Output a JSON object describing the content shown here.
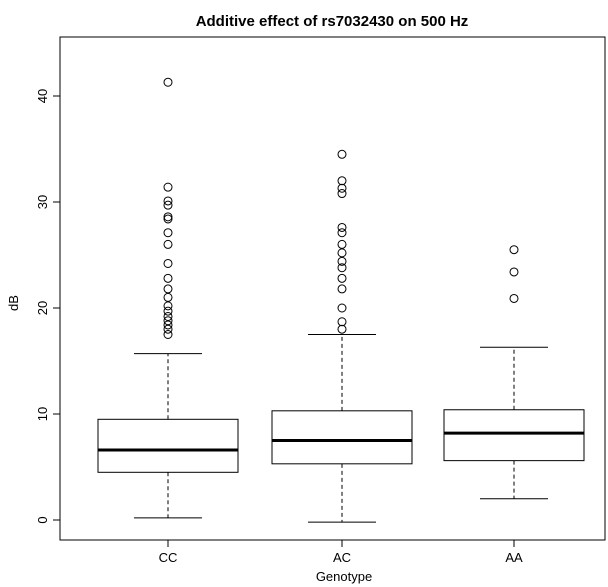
{
  "chart_data": {
    "type": "boxplot",
    "title": "Additive effect of rs7032430 on 500 Hz",
    "xlabel": "Genotype",
    "ylabel": "dB",
    "ylim": [
      -2,
      46
    ],
    "yticks": [
      0,
      10,
      20,
      30,
      40
    ],
    "yticks_labels": [
      "0",
      "10",
      "20",
      "30",
      "40"
    ],
    "grid": false,
    "categories": [
      "CC",
      "AC",
      "AA"
    ],
    "boxes": [
      {
        "category": "CC",
        "whisker_low": 0.2,
        "q1": 4.5,
        "median": 6.6,
        "q3": 9.5,
        "whisker_high": 15.7,
        "outliers": [
          17.5,
          18.0,
          18.4,
          18.8,
          19.2,
          19.7,
          20.2,
          21.0,
          21.8,
          22.8,
          24.2,
          26.0,
          27.1,
          28.4,
          28.6,
          29.7,
          30.1,
          31.4,
          41.3
        ]
      },
      {
        "category": "AC",
        "whisker_low": -0.2,
        "q1": 5.3,
        "median": 7.5,
        "q3": 10.3,
        "whisker_high": 17.5,
        "outliers": [
          18.0,
          18.7,
          20.0,
          21.8,
          22.8,
          23.8,
          24.4,
          25.2,
          26.0,
          27.1,
          27.6,
          30.8,
          31.3,
          32.0,
          34.5
        ]
      },
      {
        "category": "AA",
        "whisker_low": 2.0,
        "q1": 5.6,
        "median": 8.2,
        "q3": 10.4,
        "whisker_high": 16.3,
        "outliers": [
          20.9,
          23.4,
          25.5
        ]
      }
    ]
  }
}
